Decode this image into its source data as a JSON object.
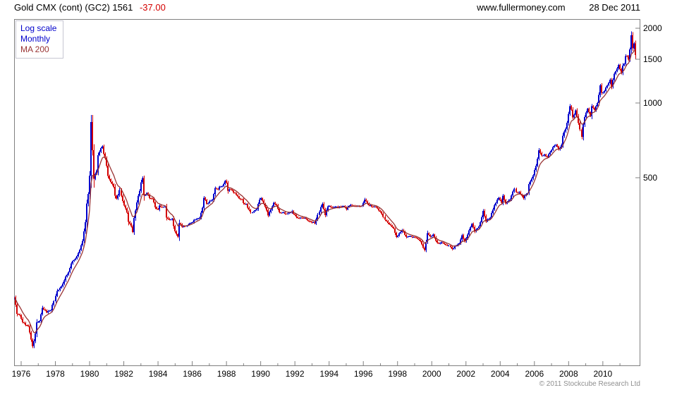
{
  "header": {
    "title": "Gold CMX (cont) (GC2) 1561",
    "change": "-37.00",
    "site": "www.fullermoney.com",
    "date": "28 Dec 2011"
  },
  "legend": {
    "items": [
      {
        "label": "Log scale",
        "color": "#0000cc"
      },
      {
        "label": "Monthly",
        "color": "#0000cc"
      },
      {
        "label": "MA 200",
        "color": "#993333"
      }
    ]
  },
  "footer": {
    "copyright": "© 2011 Stockcube Research Ltd"
  },
  "colors": {
    "up": "#0000cc",
    "down": "#d40000",
    "ma": "#993333",
    "axis": "#808080",
    "change_negative": "#d40000"
  },
  "chart_data": {
    "type": "candlestick",
    "title": "Gold CMX (cont) (GC2)",
    "interval": "monthly",
    "scale_y": "log",
    "y_axis_side": "right",
    "last_price": 1561,
    "change": -37.0,
    "y_ticks": [
      2000,
      1500,
      1000,
      500
    ],
    "x_ticks": [
      1976,
      1978,
      1980,
      1982,
      1984,
      1986,
      1988,
      1990,
      1992,
      1994,
      1996,
      1998,
      2000,
      2002,
      2004,
      2006,
      2008,
      2010
    ],
    "x_range": [
      1975.583,
      2011.97
    ],
    "y_range": [
      88,
      2180
    ],
    "ma": {
      "label": "MA 200",
      "approx_period_months": 9
    },
    "series_anchors": [
      [
        1975.58,
        166
      ],
      [
        1975.75,
        142
      ],
      [
        1975.92,
        139
      ],
      [
        1976.08,
        131
      ],
      [
        1976.25,
        128
      ],
      [
        1976.42,
        126
      ],
      [
        1976.58,
        112
      ],
      [
        1976.67,
        104
      ],
      [
        1976.83,
        117
      ],
      [
        1976.92,
        131
      ],
      [
        1977.08,
        132
      ],
      [
        1977.25,
        149
      ],
      [
        1977.5,
        144
      ],
      [
        1977.75,
        147
      ],
      [
        1977.92,
        160
      ],
      [
        1978.08,
        175
      ],
      [
        1978.33,
        182
      ],
      [
        1978.58,
        200
      ],
      [
        1978.75,
        208
      ],
      [
        1978.92,
        226
      ],
      [
        1979.08,
        233
      ],
      [
        1979.25,
        242
      ],
      [
        1979.42,
        257
      ],
      [
        1979.58,
        277
      ],
      [
        1979.75,
        331
      ],
      [
        1979.83,
        392
      ],
      [
        1979.92,
        432
      ],
      [
        1980.0,
        512
      ],
      [
        1980.08,
        843
      ],
      [
        1980.17,
        637
      ],
      [
        1980.25,
        494
      ],
      [
        1980.33,
        518
      ],
      [
        1980.42,
        535
      ],
      [
        1980.5,
        614
      ],
      [
        1980.58,
        633
      ],
      [
        1980.67,
        663
      ],
      [
        1980.75,
        667
      ],
      [
        1980.83,
        629
      ],
      [
        1980.92,
        596
      ],
      [
        1981.0,
        557
      ],
      [
        1981.08,
        506
      ],
      [
        1981.25,
        478
      ],
      [
        1981.42,
        460
      ],
      [
        1981.5,
        422
      ],
      [
        1981.58,
        410
      ],
      [
        1981.75,
        443
      ],
      [
        1981.92,
        401
      ],
      [
        1982.0,
        387
      ],
      [
        1982.17,
        362
      ],
      [
        1982.25,
        331
      ],
      [
        1982.42,
        320
      ],
      [
        1982.5,
        302
      ],
      [
        1982.58,
        343
      ],
      [
        1982.75,
        398
      ],
      [
        1982.83,
        423
      ],
      [
        1982.92,
        444
      ],
      [
        1983.0,
        481
      ],
      [
        1983.08,
        499
      ],
      [
        1983.17,
        420
      ],
      [
        1983.33,
        432
      ],
      [
        1983.5,
        416
      ],
      [
        1983.67,
        412
      ],
      [
        1983.83,
        382
      ],
      [
        1984.0,
        371
      ],
      [
        1984.08,
        386
      ],
      [
        1984.25,
        381
      ],
      [
        1984.42,
        385
      ],
      [
        1984.5,
        347
      ],
      [
        1984.67,
        340
      ],
      [
        1984.83,
        341
      ],
      [
        1984.92,
        320
      ],
      [
        1985.0,
        303
      ],
      [
        1985.17,
        288
      ],
      [
        1985.25,
        329
      ],
      [
        1985.42,
        317
      ],
      [
        1985.58,
        317
      ],
      [
        1985.75,
        325
      ],
      [
        1985.92,
        327
      ],
      [
        1986.08,
        339
      ],
      [
        1986.25,
        340
      ],
      [
        1986.42,
        346
      ],
      [
        1986.58,
        376
      ],
      [
        1986.67,
        417
      ],
      [
        1986.83,
        394
      ],
      [
        1987.0,
        400
      ],
      [
        1987.17,
        405
      ],
      [
        1987.33,
        452
      ],
      [
        1987.5,
        447
      ],
      [
        1987.58,
        461
      ],
      [
        1987.75,
        461
      ],
      [
        1987.92,
        487
      ],
      [
        1988.0,
        477
      ],
      [
        1988.08,
        442
      ],
      [
        1988.25,
        451
      ],
      [
        1988.42,
        437
      ],
      [
        1988.58,
        427
      ],
      [
        1988.75,
        412
      ],
      [
        1988.92,
        410
      ],
      [
        1989.0,
        394
      ],
      [
        1989.17,
        390
      ],
      [
        1989.33,
        371
      ],
      [
        1989.42,
        361
      ],
      [
        1989.58,
        368
      ],
      [
        1989.75,
        374
      ],
      [
        1989.92,
        409
      ],
      [
        1990.0,
        415
      ],
      [
        1990.17,
        393
      ],
      [
        1990.33,
        368
      ],
      [
        1990.42,
        352
      ],
      [
        1990.58,
        372
      ],
      [
        1990.75,
        398
      ],
      [
        1990.92,
        386
      ],
      [
        1991.08,
        362
      ],
      [
        1991.33,
        361
      ],
      [
        1991.58,
        357
      ],
      [
        1991.83,
        366
      ],
      [
        1992.0,
        354
      ],
      [
        1992.17,
        344
      ],
      [
        1992.42,
        344
      ],
      [
        1992.58,
        343
      ],
      [
        1992.83,
        335
      ],
      [
        1993.0,
        329
      ],
      [
        1993.17,
        329
      ],
      [
        1993.33,
        354
      ],
      [
        1993.58,
        392
      ],
      [
        1993.75,
        355
      ],
      [
        1993.92,
        383
      ],
      [
        1994.08,
        382
      ],
      [
        1994.33,
        381
      ],
      [
        1994.58,
        380
      ],
      [
        1994.83,
        384
      ],
      [
        1995.0,
        375
      ],
      [
        1995.25,
        389
      ],
      [
        1995.5,
        383
      ],
      [
        1995.75,
        383
      ],
      [
        1995.92,
        387
      ],
      [
        1996.08,
        410
      ],
      [
        1996.25,
        392
      ],
      [
        1996.5,
        383
      ],
      [
        1996.75,
        379
      ],
      [
        1996.92,
        369
      ],
      [
        1997.08,
        358
      ],
      [
        1997.25,
        340
      ],
      [
        1997.5,
        324
      ],
      [
        1997.75,
        311
      ],
      [
        1997.92,
        289
      ],
      [
        1998.08,
        298
      ],
      [
        1998.25,
        308
      ],
      [
        1998.5,
        289
      ],
      [
        1998.75,
        292
      ],
      [
        1998.92,
        288
      ],
      [
        1999.08,
        287
      ],
      [
        1999.33,
        277
      ],
      [
        1999.58,
        255
      ],
      [
        1999.75,
        299
      ],
      [
        1999.92,
        288
      ],
      [
        2000.08,
        294
      ],
      [
        2000.33,
        272
      ],
      [
        2000.58,
        274
      ],
      [
        2000.83,
        269
      ],
      [
        2001.0,
        266
      ],
      [
        2001.17,
        258
      ],
      [
        2001.33,
        265
      ],
      [
        2001.58,
        272
      ],
      [
        2001.75,
        292
      ],
      [
        2001.92,
        277
      ],
      [
        2002.08,
        296
      ],
      [
        2002.33,
        327
      ],
      [
        2002.5,
        304
      ],
      [
        2002.75,
        317
      ],
      [
        2002.92,
        348
      ],
      [
        2003.0,
        368
      ],
      [
        2003.17,
        334
      ],
      [
        2003.42,
        346
      ],
      [
        2003.67,
        388
      ],
      [
        2003.92,
        416
      ],
      [
        2004.08,
        396
      ],
      [
        2004.17,
        424
      ],
      [
        2004.33,
        394
      ],
      [
        2004.58,
        410
      ],
      [
        2004.83,
        453
      ],
      [
        2004.92,
        438
      ],
      [
        2005.08,
        436
      ],
      [
        2005.33,
        415
      ],
      [
        2005.58,
        433
      ],
      [
        2005.67,
        473
      ],
      [
        2005.83,
        495
      ],
      [
        2005.92,
        513
      ],
      [
        2006.08,
        556
      ],
      [
        2006.25,
        644
      ],
      [
        2006.42,
        613
      ],
      [
        2006.58,
        623
      ],
      [
        2006.75,
        604
      ],
      [
        2006.92,
        636
      ],
      [
        2007.08,
        664
      ],
      [
        2007.25,
        677
      ],
      [
        2007.42,
        651
      ],
      [
        2007.58,
        672
      ],
      [
        2007.67,
        743
      ],
      [
        2007.83,
        783
      ],
      [
        2007.92,
        834
      ],
      [
        2008.08,
        971
      ],
      [
        2008.17,
        934
      ],
      [
        2008.25,
        871
      ],
      [
        2008.42,
        930
      ],
      [
        2008.58,
        833
      ],
      [
        2008.75,
        731
      ],
      [
        2008.83,
        816
      ],
      [
        2008.92,
        884
      ],
      [
        2009.08,
        952
      ],
      [
        2009.25,
        888
      ],
      [
        2009.33,
        975
      ],
      [
        2009.5,
        939
      ],
      [
        2009.67,
        996
      ],
      [
        2009.83,
        1175
      ],
      [
        2009.92,
        1096
      ],
      [
        2010.08,
        1118
      ],
      [
        2010.25,
        1179
      ],
      [
        2010.42,
        1244
      ],
      [
        2010.5,
        1169
      ],
      [
        2010.67,
        1307
      ],
      [
        2010.83,
        1383
      ],
      [
        2010.92,
        1421
      ],
      [
        2011.08,
        1327
      ],
      [
        2011.17,
        1411
      ],
      [
        2011.25,
        1439
      ],
      [
        2011.33,
        1556
      ],
      [
        2011.42,
        1536
      ],
      [
        2011.5,
        1500
      ],
      [
        2011.58,
        1628
      ],
      [
        2011.63,
        1830
      ],
      [
        2011.68,
        1900
      ],
      [
        2011.72,
        1620
      ],
      [
        2011.83,
        1746
      ],
      [
        2011.92,
        1564
      ],
      [
        2011.97,
        1561
      ]
    ]
  }
}
